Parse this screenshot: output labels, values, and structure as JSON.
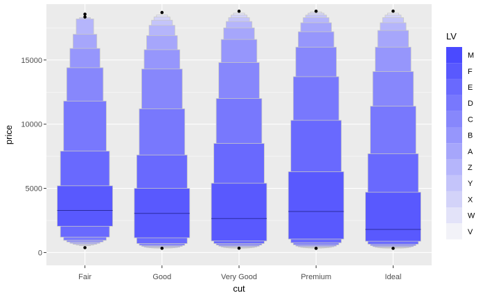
{
  "chart_data": {
    "type": "letter-value-plot",
    "xlabel": "cut",
    "ylabel": "price",
    "categories": [
      "Fair",
      "Good",
      "Very Good",
      "Premium",
      "Ideal"
    ],
    "ylim": [
      -1000,
      19350
    ],
    "y_ticks": [
      0,
      5000,
      10000,
      15000
    ],
    "grid": true,
    "legend": {
      "title": "LV",
      "position": "right",
      "levels": [
        "M",
        "F",
        "E",
        "D",
        "C",
        "B",
        "A",
        "Z",
        "Y",
        "X",
        "W",
        "V"
      ]
    },
    "colors": {
      "fill_deep": "#4a4aff",
      "fill_light": "#f2f2f8",
      "outlier": "#000000",
      "panel_bg": "#ebebeb",
      "grid": "#ffffff"
    },
    "series": [
      {
        "name": "Fair",
        "median": 3280,
        "boxes": [
          {
            "level": "F",
            "lo": 2050,
            "hi": 5200
          },
          {
            "level": "E",
            "lo": 1200,
            "hi": 7900
          },
          {
            "level": "D",
            "lo": 950,
            "hi": 11800
          },
          {
            "level": "C",
            "lo": 820,
            "hi": 14400
          },
          {
            "level": "B",
            "lo": 720,
            "hi": 15900
          },
          {
            "level": "A",
            "lo": 640,
            "hi": 17000
          },
          {
            "level": "Z",
            "lo": 580,
            "hi": 18200
          },
          {
            "level": "Y",
            "lo": 530,
            "hi": 18300
          }
        ],
        "outliers": [
          380,
          18350,
          18570
        ]
      },
      {
        "name": "Good",
        "median": 3050,
        "boxes": [
          {
            "level": "F",
            "lo": 1150,
            "hi": 5000
          },
          {
            "level": "E",
            "lo": 700,
            "hi": 7600
          },
          {
            "level": "D",
            "lo": 560,
            "hi": 11200
          },
          {
            "level": "C",
            "lo": 480,
            "hi": 14300
          },
          {
            "level": "B",
            "lo": 420,
            "hi": 15800
          },
          {
            "level": "A",
            "lo": 390,
            "hi": 16900
          },
          {
            "level": "Z",
            "lo": 370,
            "hi": 17700
          },
          {
            "level": "Y",
            "lo": 355,
            "hi": 18100
          },
          {
            "level": "X",
            "lo": 345,
            "hi": 18350
          },
          {
            "level": "W",
            "lo": 340,
            "hi": 18500
          }
        ],
        "outliers": [
          330,
          18700
        ]
      },
      {
        "name": "Very Good",
        "median": 2650,
        "boxes": [
          {
            "level": "F",
            "lo": 900,
            "hi": 5400
          },
          {
            "level": "E",
            "lo": 700,
            "hi": 8500
          },
          {
            "level": "D",
            "lo": 580,
            "hi": 12000
          },
          {
            "level": "C",
            "lo": 490,
            "hi": 14800
          },
          {
            "level": "B",
            "lo": 430,
            "hi": 16600
          },
          {
            "level": "A",
            "lo": 390,
            "hi": 17500
          },
          {
            "level": "Z",
            "lo": 370,
            "hi": 18000
          },
          {
            "level": "Y",
            "lo": 355,
            "hi": 18300
          },
          {
            "level": "X",
            "lo": 345,
            "hi": 18500
          },
          {
            "level": "W",
            "lo": 340,
            "hi": 18650
          }
        ],
        "outliers": [
          336,
          18800
        ]
      },
      {
        "name": "Premium",
        "median": 3200,
        "boxes": [
          {
            "level": "F",
            "lo": 1050,
            "hi": 6300
          },
          {
            "level": "E",
            "lo": 760,
            "hi": 10300
          },
          {
            "level": "D",
            "lo": 600,
            "hi": 13700
          },
          {
            "level": "C",
            "lo": 500,
            "hi": 16000
          },
          {
            "level": "B",
            "lo": 440,
            "hi": 17200
          },
          {
            "level": "A",
            "lo": 400,
            "hi": 17900
          },
          {
            "level": "Z",
            "lo": 380,
            "hi": 18300
          },
          {
            "level": "Y",
            "lo": 365,
            "hi": 18500
          },
          {
            "level": "X",
            "lo": 355,
            "hi": 18650
          },
          {
            "level": "W",
            "lo": 345,
            "hi": 18750
          }
        ],
        "outliers": [
          326,
          18800
        ]
      },
      {
        "name": "Ideal",
        "median": 1800,
        "boxes": [
          {
            "level": "F",
            "lo": 880,
            "hi": 4700
          },
          {
            "level": "E",
            "lo": 650,
            "hi": 7700
          },
          {
            "level": "D",
            "lo": 540,
            "hi": 11400
          },
          {
            "level": "C",
            "lo": 460,
            "hi": 14100
          },
          {
            "level": "B",
            "lo": 410,
            "hi": 16000
          },
          {
            "level": "A",
            "lo": 380,
            "hi": 17300
          },
          {
            "level": "Z",
            "lo": 360,
            "hi": 17900
          },
          {
            "level": "Y",
            "lo": 350,
            "hi": 18300
          },
          {
            "level": "X",
            "lo": 345,
            "hi": 18500
          },
          {
            "level": "W",
            "lo": 340,
            "hi": 18650
          }
        ],
        "outliers": [
          326,
          18806
        ]
      }
    ]
  }
}
